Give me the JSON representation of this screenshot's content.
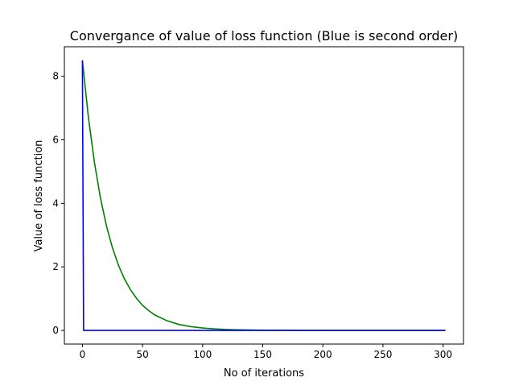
{
  "chart_data": {
    "type": "line",
    "title": "Convergance of value of loss function (Blue is second order)",
    "xlabel": "No of iterations",
    "ylabel": "Value of loss function",
    "xlim": [
      -15,
      317
    ],
    "ylim": [
      -0.43,
      8.93
    ],
    "xticks": [
      0,
      50,
      100,
      150,
      200,
      250,
      300
    ],
    "yticks": [
      0,
      2,
      4,
      6,
      8
    ],
    "grid": false,
    "legend": "none",
    "series": [
      {
        "color": "#008000",
        "x": [
          0,
          5,
          10,
          15,
          20,
          25,
          30,
          35,
          40,
          45,
          50,
          55,
          60,
          70,
          80,
          90,
          100,
          110,
          120,
          130,
          140,
          150,
          175,
          200,
          225,
          250,
          275,
          302
        ],
        "y": [
          8.5,
          6.7,
          5.29,
          4.17,
          3.29,
          2.6,
          2.05,
          1.62,
          1.28,
          1.01,
          0.79,
          0.63,
          0.49,
          0.31,
          0.19,
          0.12,
          0.075,
          0.047,
          0.029,
          0.018,
          0.011,
          0.007,
          0.002,
          0.0,
          0.0,
          0.0,
          0.0,
          0.0
        ]
      },
      {
        "color": "#0000ff",
        "x": [
          0,
          1,
          2,
          50,
          100,
          150,
          200,
          250,
          302
        ],
        "y": [
          8.5,
          0.0,
          0.0,
          0.0,
          0.0,
          0.0,
          0.0,
          0.0,
          0.0
        ]
      }
    ]
  }
}
